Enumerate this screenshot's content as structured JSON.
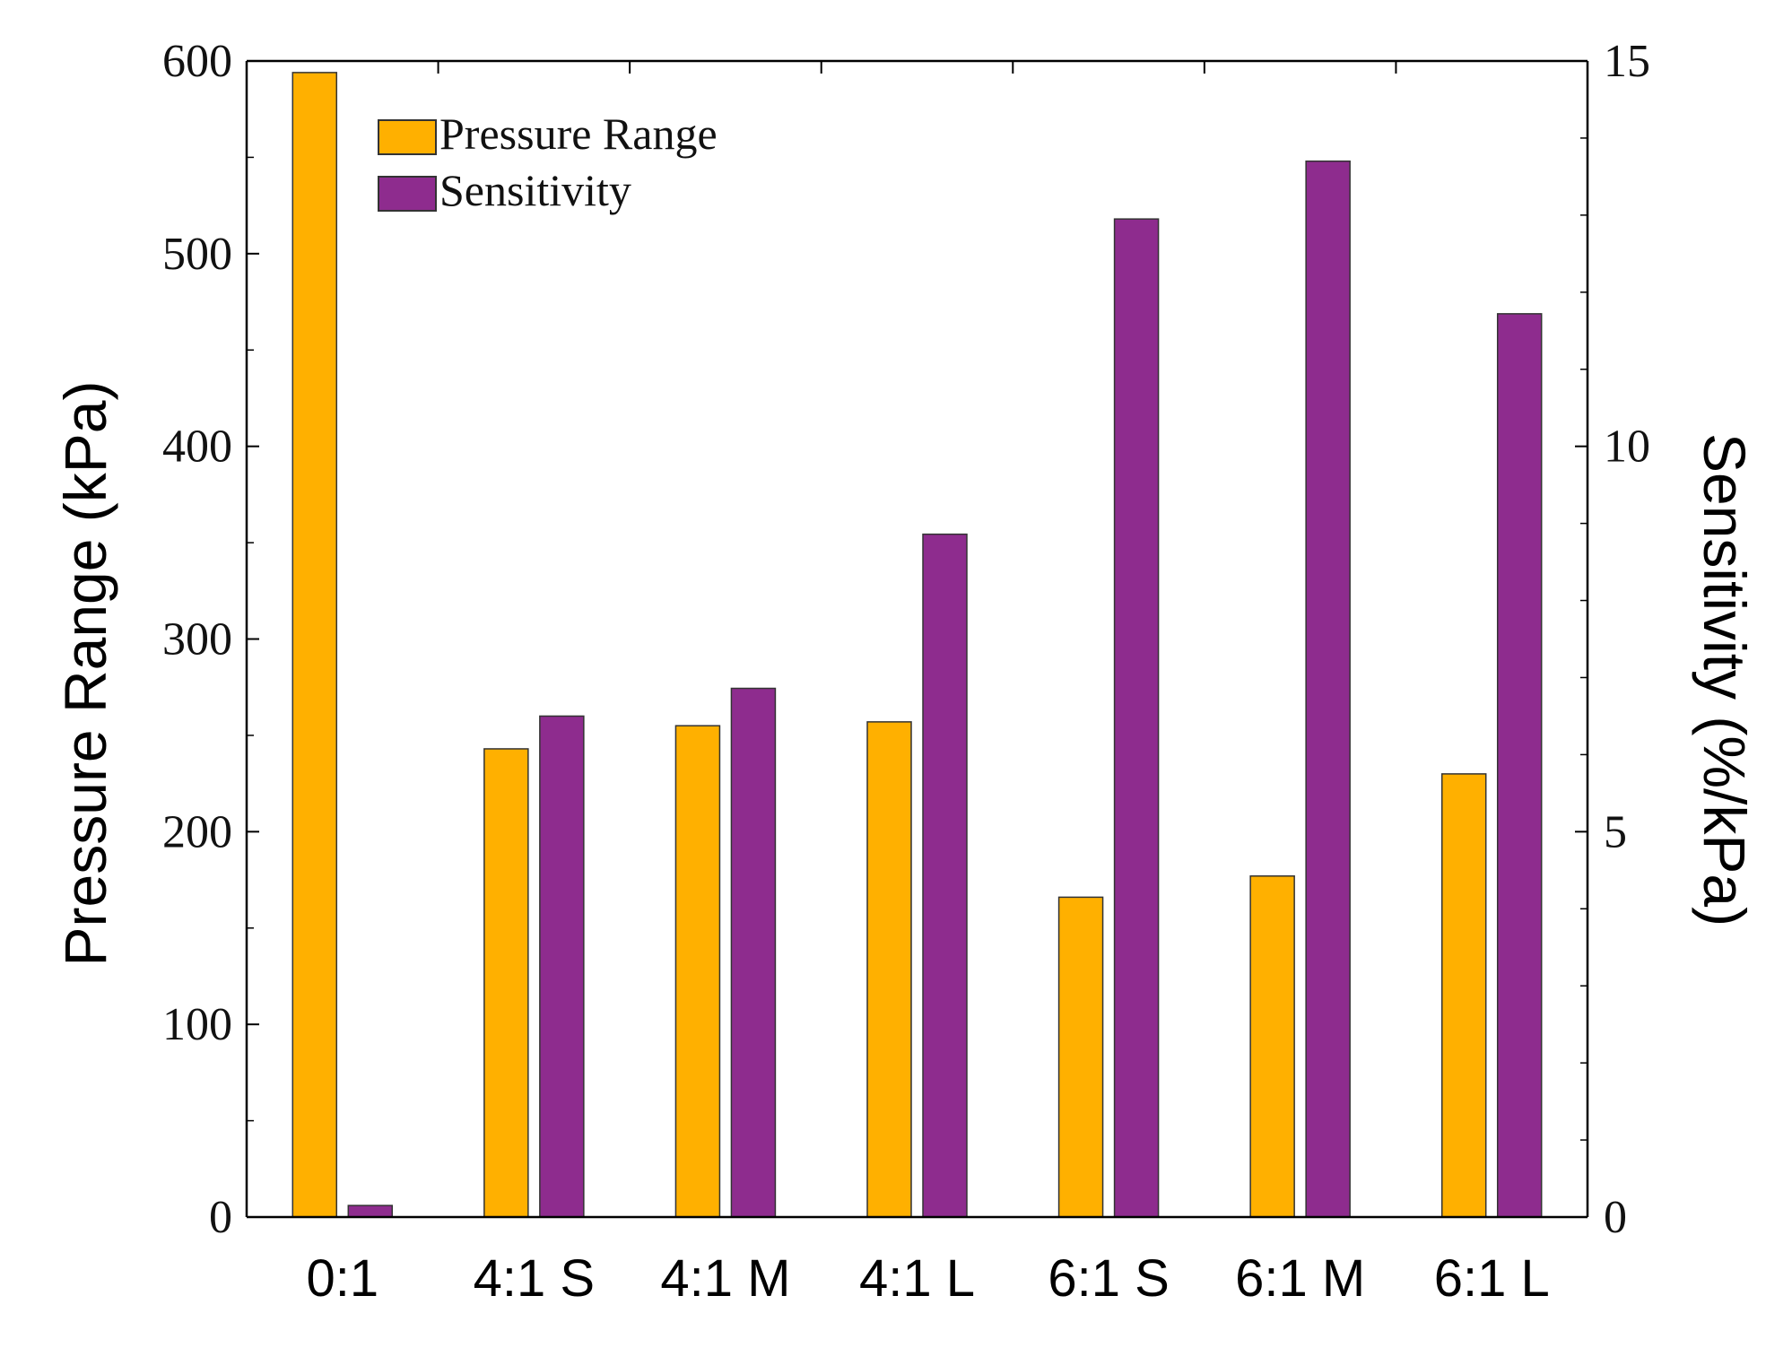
{
  "chart_data": {
    "type": "bar",
    "categories": [
      "0:1",
      "4:1 S",
      "4:1 M",
      "4:1 L",
      "6:1 S",
      "6:1 M",
      "6:1 L"
    ],
    "series": [
      {
        "name": "Pressure Range",
        "axis": "left",
        "color": "#FFB000",
        "values": [
          594,
          243,
          255,
          257,
          166,
          177,
          230
        ]
      },
      {
        "name": "Sensitivity",
        "axis": "right",
        "color": "#8E2C8E",
        "values": [
          0.15,
          6.5,
          6.86,
          8.86,
          12.95,
          13.7,
          11.72
        ]
      }
    ],
    "ylabel": "Pressure Range (kPa)",
    "y2label": "Sensitivity (%/kPa)",
    "ylim": [
      0,
      600
    ],
    "y2lim": [
      0,
      15
    ],
    "yticks": [
      "0",
      "100",
      "200",
      "300",
      "400",
      "500",
      "600"
    ],
    "y2ticks": [
      "0",
      "5",
      "10",
      "15"
    ],
    "legend": {
      "position": "top-left",
      "items": [
        "Pressure Range",
        "Sensitivity"
      ]
    },
    "grid": false
  }
}
